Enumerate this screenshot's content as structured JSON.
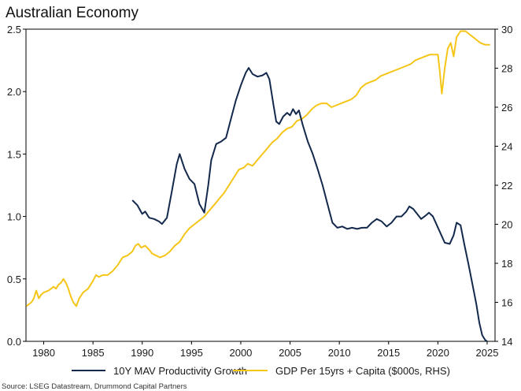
{
  "chart_data": {
    "type": "line",
    "title": "Australian Economy",
    "source": "Source: LSEG Datastream, Drummond Capital Partners",
    "colors": {
      "productivity": "#13294b",
      "gdp": "#f5c518",
      "axis": "#000000"
    },
    "x_axis": {
      "range": [
        1978.2,
        2025.8
      ],
      "ticks": [
        1980,
        1985,
        1990,
        1995,
        2000,
        2005,
        2010,
        2015,
        2020,
        2025
      ]
    },
    "y_left": {
      "range": [
        0.0,
        2.5
      ],
      "ticks": [
        0.0,
        0.5,
        1.0,
        1.5,
        2.0,
        2.5
      ],
      "tick_labels": [
        "0.0",
        "0.5",
        "1.0",
        "1.5",
        "2.0",
        "2.5"
      ]
    },
    "y_right": {
      "range": [
        14,
        30
      ],
      "ticks": [
        14,
        16,
        18,
        20,
        22,
        24,
        26,
        28,
        30
      ],
      "tick_labels": [
        "14",
        "16",
        "18",
        "20",
        "22",
        "24",
        "26",
        "28",
        "30"
      ]
    },
    "series": [
      {
        "name": "10Y MAV Productivity Growth",
        "axis": "left",
        "points": [
          [
            1989.0,
            1.13
          ],
          [
            1989.5,
            1.09
          ],
          [
            1990.0,
            1.02
          ],
          [
            1990.3,
            1.04
          ],
          [
            1990.7,
            0.99
          ],
          [
            1991.2,
            0.98
          ],
          [
            1991.7,
            0.96
          ],
          [
            1992.0,
            0.94
          ],
          [
            1992.5,
            0.99
          ],
          [
            1993.0,
            1.2
          ],
          [
            1993.5,
            1.42
          ],
          [
            1993.8,
            1.5
          ],
          [
            1994.3,
            1.38
          ],
          [
            1994.8,
            1.3
          ],
          [
            1995.3,
            1.26
          ],
          [
            1995.8,
            1.1
          ],
          [
            1996.3,
            1.03
          ],
          [
            1996.7,
            1.25
          ],
          [
            1997.0,
            1.45
          ],
          [
            1997.5,
            1.58
          ],
          [
            1998.0,
            1.6
          ],
          [
            1998.5,
            1.63
          ],
          [
            1999.0,
            1.78
          ],
          [
            1999.5,
            1.93
          ],
          [
            2000.0,
            2.05
          ],
          [
            2000.5,
            2.15
          ],
          [
            2000.8,
            2.19
          ],
          [
            2001.2,
            2.14
          ],
          [
            2001.7,
            2.12
          ],
          [
            2002.2,
            2.13
          ],
          [
            2002.6,
            2.15
          ],
          [
            2002.9,
            2.1
          ],
          [
            2003.3,
            1.9
          ],
          [
            2003.6,
            1.76
          ],
          [
            2003.9,
            1.74
          ],
          [
            2004.3,
            1.8
          ],
          [
            2004.7,
            1.83
          ],
          [
            2005.0,
            1.81
          ],
          [
            2005.3,
            1.86
          ],
          [
            2005.6,
            1.82
          ],
          [
            2005.9,
            1.85
          ],
          [
            2006.3,
            1.73
          ],
          [
            2006.8,
            1.6
          ],
          [
            2007.3,
            1.5
          ],
          [
            2007.8,
            1.38
          ],
          [
            2008.3,
            1.25
          ],
          [
            2008.8,
            1.1
          ],
          [
            2009.3,
            0.95
          ],
          [
            2009.8,
            0.91
          ],
          [
            2010.3,
            0.92
          ],
          [
            2010.8,
            0.9
          ],
          [
            2011.3,
            0.91
          ],
          [
            2011.8,
            0.9
          ],
          [
            2012.3,
            0.91
          ],
          [
            2012.8,
            0.91
          ],
          [
            2013.3,
            0.95
          ],
          [
            2013.8,
            0.98
          ],
          [
            2014.3,
            0.96
          ],
          [
            2014.8,
            0.92
          ],
          [
            2015.3,
            0.95
          ],
          [
            2015.8,
            1.0
          ],
          [
            2016.3,
            1.0
          ],
          [
            2016.8,
            1.04
          ],
          [
            2017.1,
            1.08
          ],
          [
            2017.5,
            1.06
          ],
          [
            2017.9,
            1.02
          ],
          [
            2018.3,
            0.98
          ],
          [
            2018.8,
            1.01
          ],
          [
            2019.1,
            1.03
          ],
          [
            2019.5,
            1.0
          ],
          [
            2019.9,
            0.93
          ],
          [
            2020.3,
            0.86
          ],
          [
            2020.7,
            0.79
          ],
          [
            2021.2,
            0.78
          ],
          [
            2021.6,
            0.85
          ],
          [
            2021.9,
            0.95
          ],
          [
            2022.3,
            0.93
          ],
          [
            2022.7,
            0.77
          ],
          [
            2023.1,
            0.62
          ],
          [
            2023.5,
            0.46
          ],
          [
            2023.9,
            0.3
          ],
          [
            2024.2,
            0.15
          ],
          [
            2024.5,
            0.05
          ],
          [
            2024.8,
            0.01
          ],
          [
            2025.0,
            0.0
          ]
        ]
      },
      {
        "name": "GDP Per 15yrs + Capita ($000s, RHS)",
        "axis": "right",
        "points": [
          [
            1978.25,
            15.8
          ],
          [
            1978.75,
            16.0
          ],
          [
            1979.0,
            16.2
          ],
          [
            1979.25,
            16.6
          ],
          [
            1979.5,
            16.2
          ],
          [
            1979.75,
            16.4
          ],
          [
            1980.0,
            16.5
          ],
          [
            1980.5,
            16.6
          ],
          [
            1980.75,
            16.7
          ],
          [
            1981.0,
            16.8
          ],
          [
            1981.25,
            16.7
          ],
          [
            1981.5,
            16.9
          ],
          [
            1981.75,
            17.0
          ],
          [
            1982.0,
            17.2
          ],
          [
            1982.25,
            17.0
          ],
          [
            1982.5,
            16.7
          ],
          [
            1982.75,
            16.3
          ],
          [
            1983.0,
            16.0
          ],
          [
            1983.3,
            15.8
          ],
          [
            1983.6,
            16.2
          ],
          [
            1984.0,
            16.5
          ],
          [
            1984.5,
            16.7
          ],
          [
            1985.0,
            17.1
          ],
          [
            1985.3,
            17.4
          ],
          [
            1985.6,
            17.3
          ],
          [
            1986.0,
            17.4
          ],
          [
            1986.5,
            17.4
          ],
          [
            1987.0,
            17.6
          ],
          [
            1987.5,
            17.9
          ],
          [
            1988.0,
            18.3
          ],
          [
            1988.5,
            18.4
          ],
          [
            1989.0,
            18.6
          ],
          [
            1989.3,
            18.9
          ],
          [
            1989.6,
            19.0
          ],
          [
            1989.9,
            18.8
          ],
          [
            1990.3,
            18.9
          ],
          [
            1990.7,
            18.7
          ],
          [
            1991.0,
            18.5
          ],
          [
            1991.4,
            18.4
          ],
          [
            1991.8,
            18.3
          ],
          [
            1992.3,
            18.4
          ],
          [
            1992.8,
            18.6
          ],
          [
            1993.3,
            18.9
          ],
          [
            1993.8,
            19.1
          ],
          [
            1994.3,
            19.5
          ],
          [
            1994.8,
            19.8
          ],
          [
            1995.3,
            20.0
          ],
          [
            1995.8,
            20.2
          ],
          [
            1996.3,
            20.4
          ],
          [
            1996.8,
            20.7
          ],
          [
            1997.3,
            21.0
          ],
          [
            1997.8,
            21.3
          ],
          [
            1998.3,
            21.6
          ],
          [
            1998.8,
            22.0
          ],
          [
            1999.3,
            22.4
          ],
          [
            1999.8,
            22.8
          ],
          [
            2000.3,
            22.9
          ],
          [
            2000.7,
            23.1
          ],
          [
            2001.2,
            23.0
          ],
          [
            2001.7,
            23.3
          ],
          [
            2002.2,
            23.6
          ],
          [
            2002.7,
            23.9
          ],
          [
            2003.2,
            24.2
          ],
          [
            2003.7,
            24.4
          ],
          [
            2004.2,
            24.7
          ],
          [
            2004.7,
            24.9
          ],
          [
            2005.2,
            25.0
          ],
          [
            2005.7,
            25.3
          ],
          [
            2006.2,
            25.4
          ],
          [
            2006.7,
            25.6
          ],
          [
            2007.2,
            25.9
          ],
          [
            2007.7,
            26.1
          ],
          [
            2008.2,
            26.2
          ],
          [
            2008.7,
            26.2
          ],
          [
            2009.2,
            26.0
          ],
          [
            2009.7,
            26.1
          ],
          [
            2010.2,
            26.2
          ],
          [
            2010.7,
            26.3
          ],
          [
            2011.2,
            26.4
          ],
          [
            2011.7,
            26.6
          ],
          [
            2012.2,
            27.0
          ],
          [
            2012.7,
            27.2
          ],
          [
            2013.2,
            27.3
          ],
          [
            2013.7,
            27.4
          ],
          [
            2014.2,
            27.6
          ],
          [
            2014.7,
            27.7
          ],
          [
            2015.2,
            27.8
          ],
          [
            2015.7,
            27.9
          ],
          [
            2016.2,
            28.0
          ],
          [
            2016.7,
            28.1
          ],
          [
            2017.2,
            28.2
          ],
          [
            2017.7,
            28.4
          ],
          [
            2018.2,
            28.5
          ],
          [
            2018.7,
            28.6
          ],
          [
            2019.2,
            28.7
          ],
          [
            2019.7,
            28.7
          ],
          [
            2020.0,
            28.7
          ],
          [
            2020.2,
            27.8
          ],
          [
            2020.4,
            26.7
          ],
          [
            2020.7,
            28.0
          ],
          [
            2021.0,
            29.0
          ],
          [
            2021.3,
            29.3
          ],
          [
            2021.6,
            28.6
          ],
          [
            2021.9,
            29.6
          ],
          [
            2022.3,
            29.9
          ],
          [
            2022.8,
            29.9
          ],
          [
            2023.3,
            29.7
          ],
          [
            2023.8,
            29.5
          ],
          [
            2024.3,
            29.3
          ],
          [
            2024.8,
            29.2
          ],
          [
            2025.3,
            29.2
          ]
        ]
      }
    ]
  }
}
